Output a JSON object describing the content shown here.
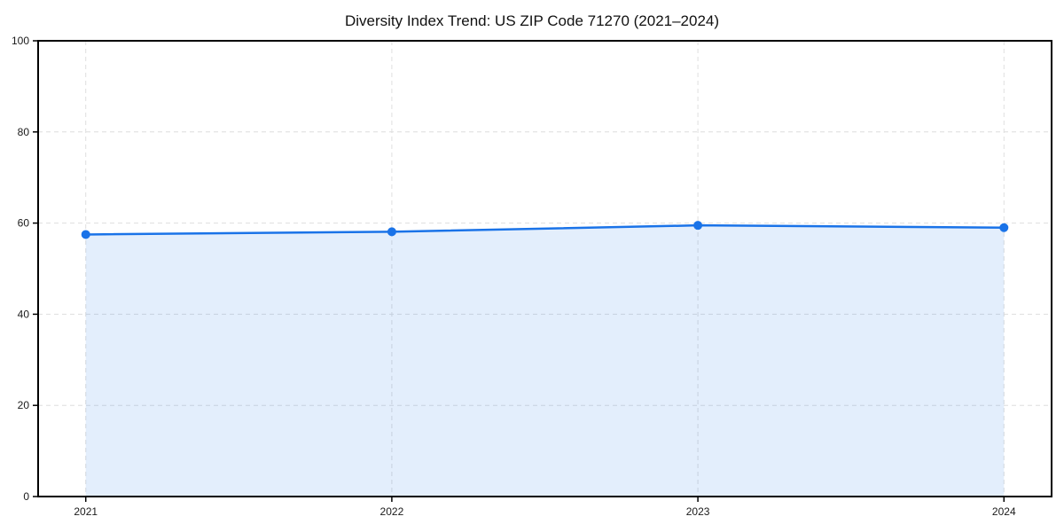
{
  "chart_data": {
    "type": "line",
    "title": "Diversity Index Trend: US ZIP Code 71270 (2021–2024)",
    "x": [
      "2021",
      "2022",
      "2023",
      "2024"
    ],
    "series": [
      {
        "name": "Diversity Index",
        "values": [
          57.5,
          58.1,
          59.5,
          59.0
        ]
      }
    ],
    "ylim": [
      0,
      100
    ],
    "yticks": [
      0,
      20,
      40,
      60,
      80,
      100
    ],
    "xlabel": "",
    "ylabel": "",
    "grid": "dashed-both-directions",
    "legend": "none",
    "area_fill": true,
    "marker": "circle",
    "colors": {
      "line": "#1a73e8",
      "marker": "#1a73e8",
      "area_fill": "rgba(26,115,232,0.12)",
      "grid": "#dedede",
      "spine": "#000000",
      "label": "#1a1a1a",
      "background": "#ffffff"
    }
  }
}
